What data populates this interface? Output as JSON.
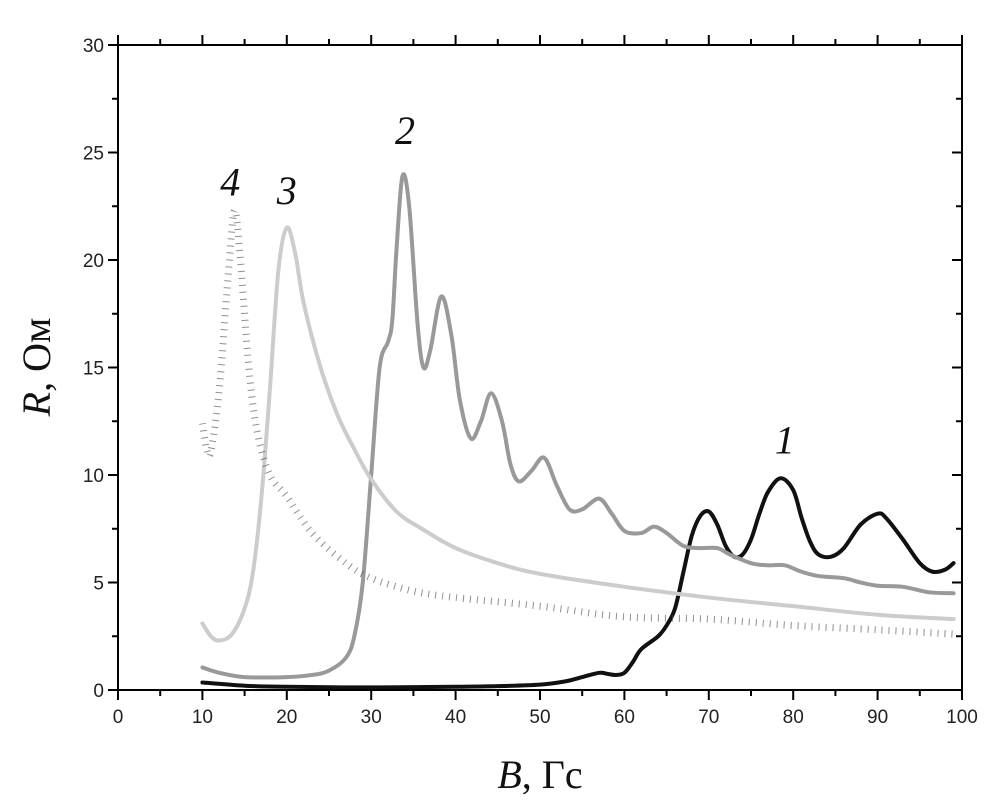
{
  "chart_data": {
    "type": "line",
    "xlabel": {
      "var": "B",
      "unit": ", Гс"
    },
    "ylabel": {
      "var": "R",
      "unit": ", Ом"
    },
    "xlim": [
      0,
      100
    ],
    "ylim": [
      0,
      30
    ],
    "xticks": [
      "0",
      "10",
      "20",
      "30",
      "40",
      "50",
      "60",
      "70",
      "80",
      "90",
      "100"
    ],
    "yticks": [
      "0",
      "5",
      "10",
      "15",
      "20",
      "25",
      "30"
    ],
    "grid": false,
    "series": [
      {
        "name": "1",
        "color": "#111111",
        "style": "solid",
        "label_at": [
          79,
          11
        ],
        "x": [
          10,
          15,
          20,
          30,
          40,
          45,
          50,
          53,
          55,
          57,
          58,
          59,
          60,
          61,
          62,
          64,
          65,
          66,
          67,
          68,
          69,
          70,
          71,
          72,
          73,
          74,
          75,
          76,
          77,
          78.5,
          80,
          81,
          82,
          83,
          84.5,
          86,
          88,
          90,
          91,
          93,
          95,
          96.5,
          98,
          99
        ],
        "y": [
          0.35,
          0.2,
          0.15,
          0.12,
          0.15,
          0.18,
          0.25,
          0.4,
          0.6,
          0.8,
          0.75,
          0.7,
          0.8,
          1.3,
          1.9,
          2.5,
          3.0,
          3.8,
          5.5,
          7.2,
          8.1,
          8.3,
          7.7,
          6.7,
          6.2,
          6.3,
          7.0,
          8.2,
          9.2,
          9.85,
          9.3,
          8.0,
          6.9,
          6.3,
          6.2,
          6.6,
          7.7,
          8.2,
          8.0,
          7.0,
          5.9,
          5.5,
          5.6,
          5.9
        ]
      },
      {
        "name": "2",
        "color": "#999999",
        "style": "solid",
        "label_at": [
          34,
          25.4
        ],
        "x": [
          10,
          12,
          15,
          20,
          23,
          25,
          27,
          28,
          29,
          30,
          31,
          32,
          32.5,
          33,
          33.7,
          34.5,
          35.5,
          36.2,
          37,
          38.3,
          39.5,
          40.5,
          41.8,
          43,
          44.2,
          45.5,
          46.5,
          47.5,
          49,
          50.5,
          52,
          53.5,
          55,
          57,
          58.5,
          60,
          62,
          63.5,
          65,
          67,
          69,
          71,
          72.5,
          75,
          77,
          79,
          81,
          83,
          86,
          88,
          90,
          93,
          96,
          99
        ],
        "y": [
          1.05,
          0.8,
          0.6,
          0.6,
          0.7,
          0.9,
          1.5,
          2.5,
          5,
          10,
          15,
          16.2,
          17.2,
          20.5,
          23.9,
          22.5,
          17,
          15.0,
          15.8,
          18.3,
          16.5,
          13.5,
          11.7,
          12.5,
          13.8,
          12.5,
          10.5,
          9.7,
          10.2,
          10.8,
          9.5,
          8.4,
          8.4,
          8.9,
          8.2,
          7.4,
          7.3,
          7.6,
          7.3,
          6.7,
          6.6,
          6.6,
          6.3,
          5.9,
          5.8,
          5.8,
          5.5,
          5.3,
          5.2,
          5.0,
          4.85,
          4.8,
          4.55,
          4.5
        ]
      },
      {
        "name": "3",
        "color": "#cccccc",
        "style": "solid",
        "label_at": [
          20,
          22.6
        ],
        "x": [
          10,
          11,
          12,
          13.5,
          15,
          16,
          17,
          18,
          19,
          20,
          21,
          22,
          24,
          26,
          28,
          30,
          33,
          36,
          40,
          45,
          50,
          60,
          70,
          80,
          90,
          99
        ],
        "y": [
          3.1,
          2.5,
          2.3,
          2.6,
          3.8,
          5.5,
          9,
          14,
          19.5,
          21.5,
          20.3,
          18,
          15,
          12.8,
          11.2,
          9.8,
          8.3,
          7.5,
          6.6,
          5.9,
          5.4,
          4.8,
          4.3,
          3.9,
          3.5,
          3.3
        ]
      },
      {
        "name": "4",
        "color": "#444444",
        "style": "dotted",
        "label_at": [
          13.3,
          23
        ],
        "x": [
          10,
          10.5,
          11,
          12,
          13,
          13.8,
          14.5,
          15.5,
          16.5,
          18,
          20,
          23,
          27,
          30,
          35,
          40,
          50,
          60,
          70,
          80,
          90,
          99
        ],
        "y": [
          12.4,
          11.2,
          11.1,
          14,
          19,
          22.3,
          20,
          15,
          12,
          10,
          9,
          7.3,
          5.9,
          5.2,
          4.6,
          4.3,
          3.9,
          3.4,
          3.3,
          3.0,
          2.8,
          2.6
        ]
      }
    ]
  }
}
